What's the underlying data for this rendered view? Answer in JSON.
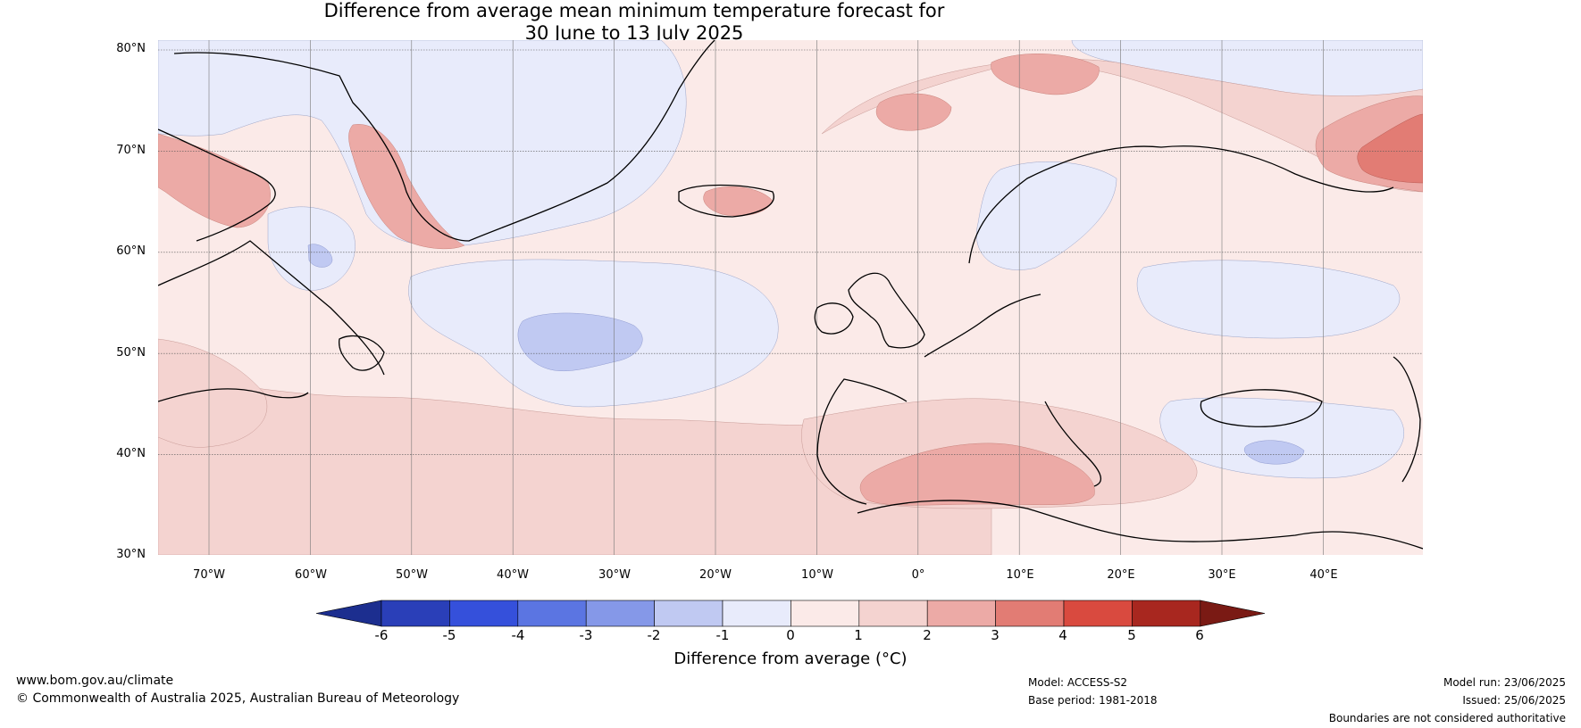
{
  "title": {
    "line1": "Difference from average mean minimum temperature forecast for",
    "line2": "30 June to 13 July 2025"
  },
  "map": {
    "lat_labels": [
      "80°N",
      "70°N",
      "60°N",
      "50°N",
      "40°N",
      "30°N"
    ],
    "lon_labels": [
      "70°W",
      "60°W",
      "50°W",
      "40°W",
      "30°W",
      "20°W",
      "10°W",
      "0°",
      "10°E",
      "20°E",
      "30°E",
      "40°E"
    ]
  },
  "colorbar": {
    "ticks": [
      "-6",
      "-5",
      "-4",
      "-3",
      "-2",
      "-1",
      "0",
      "1",
      "2",
      "3",
      "4",
      "5",
      "6"
    ],
    "colors": [
      "#1c2e8f",
      "#2a3fb8",
      "#3550db",
      "#5b75e2",
      "#8598e8",
      "#c0c9f2",
      "#e8ebfb",
      "#fbeae8",
      "#f4d3d0",
      "#ecaaa6",
      "#e27c74",
      "#d94a3f",
      "#a8271f",
      "#7a1a14"
    ],
    "title": "Difference from average (°C)"
  },
  "footer": {
    "website": "www.bom.gov.au/climate",
    "copyright": "© Commonwealth of Australia 2025, Australian Bureau of Meteorology",
    "model": "Model: ACCESS-S2",
    "base_period": "Base period: 1981-2018",
    "model_run": "Model run: 23/06/2025",
    "issued": "Issued: 25/06/2025",
    "disclaimer": "Boundaries are not considered authoritative"
  }
}
